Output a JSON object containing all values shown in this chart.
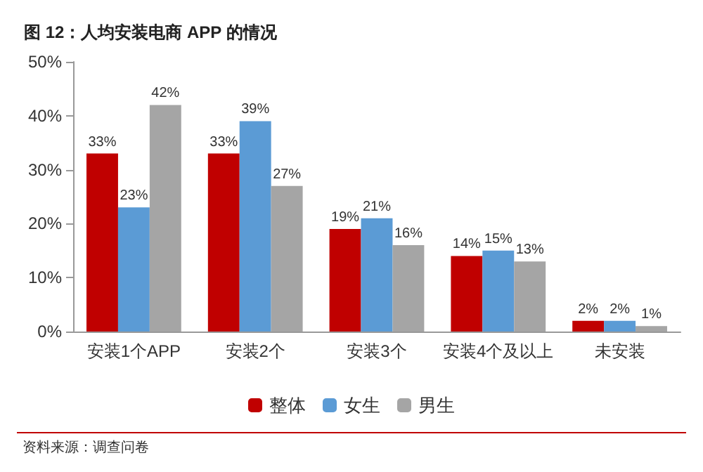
{
  "chart_data": {
    "type": "bar",
    "title": "图 12：人均安装电商 APP 的情况",
    "categories": [
      "安装1个APP",
      "安装2个",
      "安装3个",
      "安装4个及以上",
      "未安装"
    ],
    "series": [
      {
        "name": "整体",
        "color": "#c00000",
        "values": [
          33,
          33,
          19,
          14,
          2
        ],
        "value_labels": [
          "33%",
          "33%",
          "19%",
          "14%",
          "2%"
        ]
      },
      {
        "name": "女生",
        "color": "#5b9bd5",
        "values": [
          23,
          39,
          21,
          15,
          2
        ],
        "value_labels": [
          "23%",
          "39%",
          "21%",
          "15%",
          "2%"
        ]
      },
      {
        "name": "男生",
        "color": "#a5a5a5",
        "values": [
          42,
          27,
          16,
          13,
          1
        ],
        "value_labels": [
          "42%",
          "27%",
          "16%",
          "13%",
          "1%"
        ]
      }
    ],
    "ylim": [
      0,
      50
    ],
    "yticks": [
      {
        "value": 0,
        "label": "0%"
      },
      {
        "value": 10,
        "label": "10%"
      },
      {
        "value": 20,
        "label": "20%"
      },
      {
        "value": 30,
        "label": "30%"
      },
      {
        "value": 40,
        "label": "40%"
      },
      {
        "value": 50,
        "label": "50%"
      }
    ],
    "grid": false,
    "legend": "bottom",
    "annotations": [
      "资料来源：调查问卷"
    ]
  }
}
